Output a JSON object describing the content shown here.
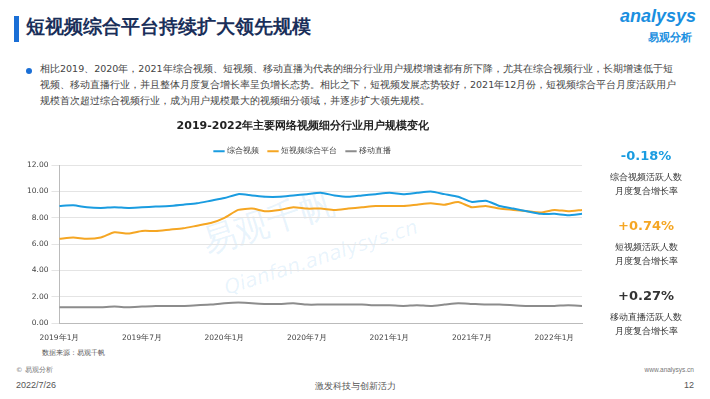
{
  "header": {
    "title": "短视频综合平台持续扩大领先规模",
    "logo": "analysys",
    "logo_cn": "易观分析"
  },
  "bullet": "相比2019、2020年，2021年综合视频、短视频、移动直播为代表的细分行业用户规模增速都有所下降，尤其在综合视频行业，长期增速低于短视频、移动直播行业，并且整体月度复合增长率呈负增长态势。相比之下，短视频发展态势较好，2021年12月份，短视频综合平台月度活跃用户规模首次超过综合视频行业，成为用户规模最大的视频细分领域，并逐步扩大领先规模。",
  "watermark": [
    "易观千帆",
    "Qianfan.analysys.cn"
  ],
  "chart_data": {
    "type": "line",
    "title": "2019-2022年主要网络视频细分行业用户规模变化",
    "categories": [
      "2019年1月",
      null,
      null,
      null,
      null,
      null,
      "2019年7月",
      null,
      null,
      null,
      null,
      null,
      "2020年1月",
      null,
      null,
      null,
      null,
      null,
      "2020年7月",
      null,
      null,
      null,
      null,
      null,
      "2021年1月",
      null,
      null,
      null,
      null,
      null,
      "2021年7月",
      null,
      null,
      null,
      null,
      null,
      "2022年1月",
      null,
      null
    ],
    "series": [
      {
        "name": "综合视频",
        "color": "#1a9ce0",
        "values": [
          8.9,
          8.95,
          8.8,
          8.75,
          8.8,
          8.75,
          8.8,
          8.85,
          8.9,
          9.0,
          9.1,
          9.3,
          9.5,
          9.8,
          9.7,
          9.6,
          9.6,
          9.7,
          9.8,
          9.9,
          9.7,
          9.6,
          9.7,
          9.8,
          9.9,
          9.8,
          9.9,
          10.0,
          9.8,
          9.6,
          9.2,
          9.3,
          8.9,
          8.7,
          8.5,
          8.3,
          8.3,
          8.2,
          8.3
        ]
      },
      {
        "name": "短视频综合平台",
        "color": "#f5a623",
        "values": [
          6.4,
          6.5,
          6.4,
          6.5,
          6.9,
          6.8,
          7.0,
          7.0,
          7.1,
          7.2,
          7.4,
          7.6,
          8.0,
          8.6,
          8.7,
          8.5,
          8.6,
          8.8,
          8.7,
          8.7,
          8.6,
          8.7,
          8.8,
          8.9,
          8.9,
          8.9,
          9.0,
          9.1,
          9.0,
          9.2,
          8.8,
          8.9,
          8.7,
          8.6,
          8.5,
          8.4,
          8.6,
          8.5,
          8.6
        ]
      },
      {
        "name": "移动直播",
        "color": "#8c8c8c",
        "values": [
          1.2,
          1.2,
          1.2,
          1.2,
          1.25,
          1.2,
          1.25,
          1.3,
          1.3,
          1.3,
          1.35,
          1.4,
          1.5,
          1.55,
          1.5,
          1.45,
          1.45,
          1.5,
          1.4,
          1.4,
          1.4,
          1.4,
          1.4,
          1.35,
          1.35,
          1.3,
          1.35,
          1.3,
          1.4,
          1.5,
          1.45,
          1.4,
          1.4,
          1.35,
          1.3,
          1.3,
          1.3,
          1.35,
          1.3
        ]
      }
    ],
    "ylim": [
      0,
      12
    ],
    "yticks": [
      {
        "value": 0,
        "label": "0.00"
      },
      {
        "value": 2,
        "label": "2.00"
      },
      {
        "value": 4,
        "label": "4.00"
      },
      {
        "value": 6,
        "label": "6.00"
      },
      {
        "value": 8,
        "label": "8.00"
      },
      {
        "value": 10,
        "label": "10.00"
      },
      {
        "value": 12,
        "label": "12.00"
      }
    ],
    "grid": true,
    "legend": "top"
  },
  "annotations": [
    {
      "value": "-0.18%",
      "color": "#1a9ce0",
      "lines": [
        "综合视频活跃人数",
        "月度复合增长率"
      ]
    },
    {
      "value": "+0.74%",
      "color": "#f5a623",
      "lines": [
        "短视频活跃人数",
        "月度复合增长率"
      ]
    },
    {
      "value": "+0.27%",
      "color": "#333333",
      "lines": [
        "移动直播活跃人数",
        "月度复合增长率"
      ]
    }
  ],
  "source": "数据来源：易观千帆",
  "footer": {
    "copyright": "© 易观分析",
    "date": "2022/7/26",
    "slogan": "激发科技与创新活力",
    "url": "www.analysys.cn",
    "page": "12"
  }
}
